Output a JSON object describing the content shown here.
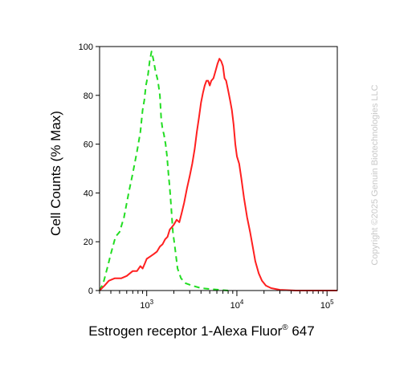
{
  "chart_data": {
    "type": "line",
    "xlabel": "Estrogen receptor 1-Alexa Fluor",
    "xlabel_sup": "®",
    "xlabel_suffix": " 647",
    "ylabel": "Cell Counts (% Max)",
    "xscale": "log",
    "xlim": [
      300,
      130000
    ],
    "ylim": [
      0,
      100
    ],
    "yticks": [
      0,
      20,
      40,
      60,
      80,
      100
    ],
    "ytick_labels": [
      "0",
      "20",
      "40",
      "60",
      "80",
      "100"
    ],
    "xticks": [
      {
        "value": 1000,
        "base": "10",
        "exp": "3"
      },
      {
        "value": 10000,
        "base": "10",
        "exp": "4"
      },
      {
        "value": 100000,
        "base": "10",
        "exp": "5"
      }
    ],
    "grid": false,
    "legend": "none",
    "watermark": "Copyright ©2025 Genuin Biotechnologies LLC",
    "series": [
      {
        "color": "#22dd22",
        "style": "dashed",
        "points": [
          [
            300,
            0
          ],
          [
            330,
            3
          ],
          [
            370,
            10
          ],
          [
            400,
            15
          ],
          [
            450,
            22
          ],
          [
            500,
            24
          ],
          [
            560,
            30
          ],
          [
            630,
            40
          ],
          [
            700,
            48
          ],
          [
            780,
            57
          ],
          [
            850,
            65
          ],
          [
            900,
            74
          ],
          [
            940,
            78
          ],
          [
            980,
            84
          ],
          [
            1030,
            88
          ],
          [
            1080,
            94
          ],
          [
            1130,
            98
          ],
          [
            1180,
            95
          ],
          [
            1250,
            90
          ],
          [
            1330,
            86
          ],
          [
            1400,
            80
          ],
          [
            1450,
            70
          ],
          [
            1500,
            66
          ],
          [
            1550,
            64
          ],
          [
            1620,
            60
          ],
          [
            1680,
            55
          ],
          [
            1740,
            48
          ],
          [
            1800,
            42
          ],
          [
            1870,
            34
          ],
          [
            1950,
            24
          ],
          [
            2050,
            18
          ],
          [
            2200,
            9
          ],
          [
            2400,
            5
          ],
          [
            2700,
            3
          ],
          [
            3200,
            2
          ],
          [
            4000,
            1
          ],
          [
            5500,
            0.5
          ],
          [
            8000,
            0
          ]
        ]
      },
      {
        "color": "#ff2020",
        "style": "solid",
        "points": [
          [
            300,
            0
          ],
          [
            340,
            2
          ],
          [
            380,
            4
          ],
          [
            440,
            5
          ],
          [
            520,
            5
          ],
          [
            600,
            6
          ],
          [
            700,
            8
          ],
          [
            780,
            8
          ],
          [
            850,
            10
          ],
          [
            900,
            9
          ],
          [
            950,
            11
          ],
          [
            1000,
            13
          ],
          [
            1100,
            14
          ],
          [
            1200,
            15
          ],
          [
            1300,
            16
          ],
          [
            1400,
            18
          ],
          [
            1500,
            19
          ],
          [
            1600,
            21
          ],
          [
            1700,
            22
          ],
          [
            1800,
            25
          ],
          [
            1900,
            26
          ],
          [
            2000,
            27
          ],
          [
            2150,
            29
          ],
          [
            2300,
            28
          ],
          [
            2450,
            32
          ],
          [
            2600,
            36
          ],
          [
            2800,
            42
          ],
          [
            3000,
            47
          ],
          [
            3200,
            52
          ],
          [
            3400,
            58
          ],
          [
            3600,
            65
          ],
          [
            3800,
            71
          ],
          [
            4000,
            77
          ],
          [
            4200,
            81
          ],
          [
            4400,
            84
          ],
          [
            4600,
            86
          ],
          [
            4800,
            86
          ],
          [
            5000,
            84
          ],
          [
            5200,
            86
          ],
          [
            5500,
            87
          ],
          [
            5800,
            90
          ],
          [
            6100,
            93
          ],
          [
            6400,
            95
          ],
          [
            6700,
            94
          ],
          [
            7000,
            92
          ],
          [
            7300,
            87
          ],
          [
            7600,
            86
          ],
          [
            8000,
            82
          ],
          [
            8400,
            78
          ],
          [
            8800,
            74
          ],
          [
            9200,
            68
          ],
          [
            9600,
            60
          ],
          [
            10000,
            55
          ],
          [
            10600,
            52
          ],
          [
            11200,
            46
          ],
          [
            12000,
            38
          ],
          [
            13000,
            30
          ],
          [
            14000,
            24
          ],
          [
            15000,
            18
          ],
          [
            16000,
            12
          ],
          [
            17500,
            7
          ],
          [
            19000,
            4
          ],
          [
            21000,
            2
          ],
          [
            24000,
            1
          ],
          [
            30000,
            0.3
          ],
          [
            45000,
            0
          ],
          [
            130000,
            0
          ]
        ]
      }
    ]
  }
}
